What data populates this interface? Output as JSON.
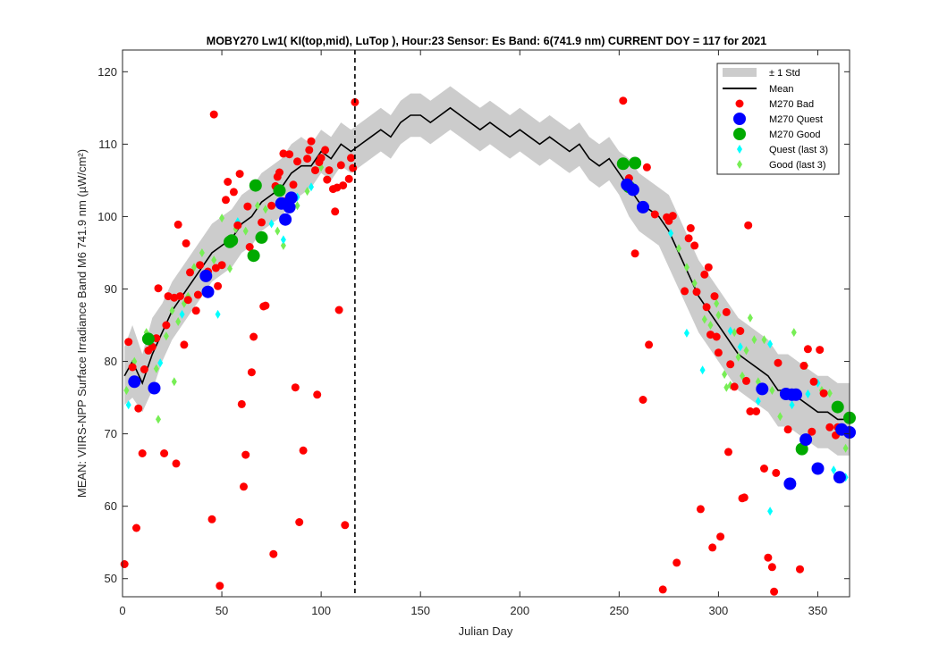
{
  "chart_data": {
    "type": "scatter",
    "title": "MOBY270   Lw1( KI(top,mid), LuTop ),   Hour:23 Sensor: Es Band: 6(741.9 nm)   CURRENT DOY = 117 for 2021",
    "xlabel": "Julian Day",
    "ylabel": "MEAN: VIIRS-NPP Surface Irradiance Band M6 741.9 nm (µW/cm²)",
    "xlim": [
      0,
      366
    ],
    "ylim": [
      47.5,
      123
    ],
    "xticks": [
      0,
      50,
      100,
      150,
      200,
      250,
      300,
      350
    ],
    "yticks": [
      50,
      60,
      70,
      80,
      90,
      100,
      110,
      120
    ],
    "current_doy": 117,
    "grid": false,
    "legend_position": "top-right",
    "legend": {
      "std": "± 1 Std",
      "mean": "Mean",
      "bad": "M270 Bad",
      "quest": "M270 Quest",
      "good": "M270 Good",
      "quest_last3": "Quest (last 3)",
      "good_last3": "Good (last 3)"
    },
    "colors": {
      "std_band": "#cccccc",
      "mean_line": "#000000",
      "bad": "#ff0000",
      "quest": "#0000ff",
      "good": "#00aa00",
      "quest_last3": "#00ffff",
      "good_last3": "#77ee55",
      "current_doy_line": "#000000"
    },
    "mean_curve": {
      "x": [
        1,
        5,
        10,
        15,
        20,
        25,
        30,
        35,
        40,
        45,
        50,
        55,
        60,
        65,
        70,
        75,
        80,
        85,
        90,
        95,
        100,
        105,
        110,
        115,
        120,
        125,
        130,
        135,
        140,
        145,
        150,
        155,
        160,
        165,
        170,
        175,
        180,
        185,
        190,
        195,
        200,
        205,
        210,
        215,
        220,
        225,
        230,
        235,
        240,
        245,
        250,
        255,
        260,
        265,
        270,
        275,
        280,
        285,
        290,
        295,
        300,
        305,
        310,
        315,
        320,
        325,
        330,
        335,
        340,
        345,
        350,
        355,
        360,
        366
      ],
      "y": [
        78,
        80,
        77,
        81,
        84,
        87,
        89,
        91,
        93,
        95,
        96,
        97,
        99,
        100,
        102,
        103,
        104,
        106,
        107,
        107,
        109,
        108,
        110,
        109,
        110,
        111,
        112,
        111,
        113,
        114,
        114,
        113,
        114,
        115,
        114,
        113,
        112,
        113,
        112,
        111,
        112,
        111,
        110,
        111,
        110,
        109,
        110,
        108,
        107,
        108,
        106,
        104,
        102,
        101,
        100,
        98,
        95,
        92,
        89,
        87,
        85,
        83,
        81,
        80,
        79,
        78,
        76,
        76,
        75,
        74,
        73,
        73,
        72,
        72
      ],
      "std": [
        4,
        5,
        4,
        5,
        4,
        4,
        4,
        4,
        4,
        4,
        4,
        4,
        4,
        4,
        4,
        4,
        4,
        4,
        4,
        3,
        3,
        3,
        3,
        3,
        3,
        3,
        3,
        3,
        3,
        3,
        3,
        3,
        3,
        3,
        3,
        3,
        3,
        3,
        3,
        3,
        3,
        3,
        3,
        3,
        3,
        3,
        3,
        3,
        3,
        3,
        3,
        4,
        4,
        4,
        4,
        5,
        5,
        5,
        5,
        5,
        5,
        5,
        5,
        5,
        5,
        5,
        5,
        5,
        5,
        5,
        5,
        5,
        5,
        5
      ]
    },
    "series": [
      {
        "name": "M270 Bad",
        "points": [
          [
            1,
            52
          ],
          [
            3,
            82.7
          ],
          [
            5,
            79.2
          ],
          [
            7,
            57
          ],
          [
            8,
            73.5
          ],
          [
            10,
            67.3
          ],
          [
            11,
            78.9
          ],
          [
            13,
            81.5
          ],
          [
            15,
            82
          ],
          [
            17,
            83.2
          ],
          [
            18,
            90.1
          ],
          [
            21,
            67.3
          ],
          [
            22,
            85
          ],
          [
            23,
            89
          ],
          [
            26,
            88.8
          ],
          [
            27,
            65.9
          ],
          [
            28,
            98.9
          ],
          [
            29,
            89
          ],
          [
            31,
            82.3
          ],
          [
            32,
            96.3
          ],
          [
            33,
            88.5
          ],
          [
            34,
            92.3
          ],
          [
            37,
            87
          ],
          [
            38,
            89.2
          ],
          [
            39,
            93.3
          ],
          [
            43,
            92.4
          ],
          [
            45,
            58.2
          ],
          [
            46,
            114.1
          ],
          [
            47,
            92.9
          ],
          [
            48,
            90.4
          ],
          [
            49,
            49
          ],
          [
            50,
            93.3
          ],
          [
            52,
            102.3
          ],
          [
            53,
            104.8
          ],
          [
            55,
            96.4
          ],
          [
            56,
            103.4
          ],
          [
            58,
            98.8
          ],
          [
            59,
            105.9
          ],
          [
            60,
            74.1
          ],
          [
            61,
            62.7
          ],
          [
            62,
            67.1
          ],
          [
            63,
            101.4
          ],
          [
            64,
            95.8
          ],
          [
            65,
            78.5
          ],
          [
            66,
            83.4
          ],
          [
            70,
            99.2
          ],
          [
            71,
            87.6
          ],
          [
            72,
            87.7
          ],
          [
            75,
            101.5
          ],
          [
            76,
            53.4
          ],
          [
            77,
            104.2
          ],
          [
            78,
            105.5
          ],
          [
            79,
            106.1
          ],
          [
            81,
            108.7
          ],
          [
            82,
            102.1
          ],
          [
            84,
            108.6
          ],
          [
            86,
            104.4
          ],
          [
            87,
            76.4
          ],
          [
            88,
            107.6
          ],
          [
            89,
            57.8
          ],
          [
            91,
            67.7
          ],
          [
            93,
            108
          ],
          [
            94,
            109.2
          ],
          [
            95,
            110.4
          ],
          [
            97,
            106.4
          ],
          [
            98,
            75.4
          ],
          [
            99,
            107.5
          ],
          [
            100,
            108.1
          ],
          [
            102,
            109.2
          ],
          [
            103,
            105.1
          ],
          [
            104,
            106.4
          ],
          [
            106,
            103.8
          ],
          [
            107,
            100.7
          ],
          [
            108,
            104
          ],
          [
            109,
            87.1
          ],
          [
            110,
            107.1
          ],
          [
            111,
            104.3
          ],
          [
            112,
            57.4
          ],
          [
            114,
            105.2
          ],
          [
            115,
            108.1
          ],
          [
            116,
            106.7
          ],
          [
            117,
            115.8
          ],
          [
            252,
            116
          ],
          [
            255,
            105.3
          ],
          [
            258,
            94.9
          ],
          [
            262,
            74.7
          ],
          [
            264,
            106.8
          ],
          [
            265,
            82.3
          ],
          [
            268,
            100.3
          ],
          [
            272,
            48.5
          ],
          [
            274,
            99.9
          ],
          [
            275,
            99.4
          ],
          [
            277,
            100.1
          ],
          [
            279,
            52.2
          ],
          [
            283,
            89.7
          ],
          [
            285,
            97
          ],
          [
            286,
            98.4
          ],
          [
            288,
            96
          ],
          [
            289,
            89.6
          ],
          [
            291,
            59.6
          ],
          [
            293,
            92
          ],
          [
            294,
            87.5
          ],
          [
            295,
            93
          ],
          [
            296,
            83.7
          ],
          [
            297,
            54.3
          ],
          [
            298,
            89
          ],
          [
            299,
            83.4
          ],
          [
            300,
            81.2
          ],
          [
            301,
            55.8
          ],
          [
            304,
            86.8
          ],
          [
            305,
            67.5
          ],
          [
            306,
            79.6
          ],
          [
            308,
            76.5
          ],
          [
            311,
            84.2
          ],
          [
            312,
            61.1
          ],
          [
            313,
            61.2
          ],
          [
            314,
            77.3
          ],
          [
            315,
            98.8
          ],
          [
            316,
            73.1
          ],
          [
            319,
            73.1
          ],
          [
            322,
            76.2
          ],
          [
            323,
            65.2
          ],
          [
            325,
            52.9
          ],
          [
            327,
            51.6
          ],
          [
            328,
            48.2
          ],
          [
            329,
            64.6
          ],
          [
            330,
            79.8
          ],
          [
            333,
            75.6
          ],
          [
            335,
            70.6
          ],
          [
            338,
            75.4
          ],
          [
            341,
            51.3
          ],
          [
            343,
            79.4
          ],
          [
            345,
            81.7
          ],
          [
            347,
            70.3
          ],
          [
            348,
            77.2
          ],
          [
            351,
            81.6
          ],
          [
            353,
            75.6
          ],
          [
            356,
            70.9
          ],
          [
            359,
            69.8
          ],
          [
            360,
            70.9
          ]
        ]
      },
      {
        "name": "M270 Quest",
        "points": [
          [
            6,
            77.2
          ],
          [
            16,
            76.3
          ],
          [
            42,
            91.8
          ],
          [
            43,
            89.6
          ],
          [
            80,
            101.8
          ],
          [
            82,
            99.6
          ],
          [
            84,
            101.3
          ],
          [
            85,
            102.6
          ],
          [
            254,
            104.4
          ],
          [
            257,
            103.7
          ],
          [
            262,
            101.3
          ],
          [
            322,
            76.2
          ],
          [
            334,
            75.5
          ],
          [
            336,
            63.1
          ],
          [
            337,
            75.4
          ],
          [
            339,
            75.4
          ],
          [
            344,
            69.2
          ],
          [
            350,
            65.2
          ],
          [
            361,
            64
          ],
          [
            362,
            70.6
          ],
          [
            366,
            70.2
          ]
        ]
      },
      {
        "name": "M270 Good",
        "points": [
          [
            13,
            83.1
          ],
          [
            54,
            96.5
          ],
          [
            55,
            96.7
          ],
          [
            67,
            104.3
          ],
          [
            66,
            94.6
          ],
          [
            70,
            97.1
          ],
          [
            79,
            103.6
          ],
          [
            252,
            107.3
          ],
          [
            255,
            104.1
          ],
          [
            258,
            107.4
          ],
          [
            342,
            67.9
          ],
          [
            360,
            73.7
          ],
          [
            366,
            72.2
          ]
        ]
      },
      {
        "name": "Quest (last 3)",
        "points": [
          [
            3,
            74
          ],
          [
            19,
            79.8
          ],
          [
            30,
            86.5
          ],
          [
            48,
            86.5
          ],
          [
            58,
            99.3
          ],
          [
            75,
            99
          ],
          [
            81,
            96.8
          ],
          [
            88,
            102.7
          ],
          [
            95,
            104.1
          ],
          [
            255,
            103.6
          ],
          [
            276,
            97.7
          ],
          [
            284,
            83.9
          ],
          [
            292,
            78.8
          ],
          [
            306,
            84.2
          ],
          [
            311,
            82
          ],
          [
            320,
            74.5
          ],
          [
            326,
            82.4
          ],
          [
            326,
            59.3
          ],
          [
            337,
            74
          ],
          [
            345,
            75.5
          ],
          [
            350,
            77
          ],
          [
            358,
            65
          ],
          [
            364,
            64
          ]
        ]
      },
      {
        "name": "Good (last 3)",
        "points": [
          [
            2,
            76
          ],
          [
            6,
            80
          ],
          [
            12,
            84
          ],
          [
            17,
            79
          ],
          [
            18,
            72
          ],
          [
            22,
            83.5
          ],
          [
            25,
            87
          ],
          [
            26,
            77.2
          ],
          [
            28,
            85.5
          ],
          [
            31,
            88
          ],
          [
            33,
            89
          ],
          [
            36,
            93
          ],
          [
            40,
            95
          ],
          [
            46,
            94
          ],
          [
            50,
            99.8
          ],
          [
            54,
            92.8
          ],
          [
            57,
            98.3
          ],
          [
            62,
            98
          ],
          [
            68,
            101.5
          ],
          [
            72,
            101
          ],
          [
            78,
            98
          ],
          [
            81,
            96
          ],
          [
            88,
            101.5
          ],
          [
            93,
            103.5
          ],
          [
            100,
            106.8
          ],
          [
            280,
            95.6
          ],
          [
            284,
            93
          ],
          [
            288,
            90.8
          ],
          [
            293,
            85.8
          ],
          [
            296,
            85
          ],
          [
            299,
            88
          ],
          [
            300,
            86.4
          ],
          [
            303,
            78.2
          ],
          [
            304,
            76.4
          ],
          [
            306,
            76.7
          ],
          [
            308,
            84
          ],
          [
            310,
            80.6
          ],
          [
            312,
            78
          ],
          [
            314,
            81.5
          ],
          [
            316,
            86
          ],
          [
            318,
            83
          ],
          [
            320,
            77.2
          ],
          [
            323,
            83
          ],
          [
            327,
            76
          ],
          [
            331,
            72.4
          ],
          [
            338,
            84
          ],
          [
            344,
            79.4
          ],
          [
            352,
            76
          ],
          [
            356,
            75.6
          ],
          [
            360,
            70
          ],
          [
            364,
            68
          ]
        ]
      }
    ]
  }
}
